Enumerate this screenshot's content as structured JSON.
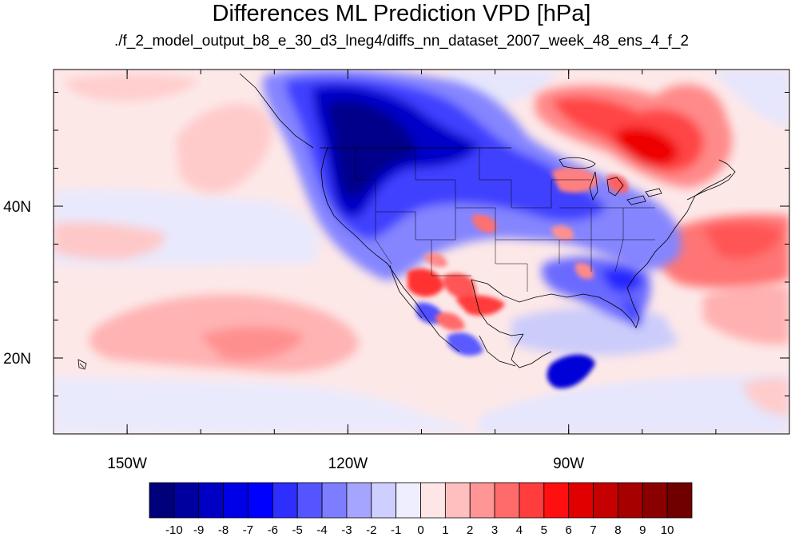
{
  "title": "Differences ML Prediction VPD [hPa]",
  "subtitle": "./f_2_model_output_b8_e_30_d3_lneg4/diffs_nn_dataset_2007_week_48_ens_4_f_2",
  "map": {
    "lon_range": [
      -160,
      -60
    ],
    "lat_range": [
      10,
      58
    ],
    "x_ticks": [
      {
        "lon": -150,
        "label": "150W"
      },
      {
        "lon": -120,
        "label": "120W"
      },
      {
        "lon": -90,
        "label": "90W"
      }
    ],
    "y_ticks": [
      {
        "lat": 40,
        "label": "40N"
      },
      {
        "lat": 20,
        "label": "20N"
      }
    ]
  },
  "colorbar": {
    "colors": [
      "#00007a",
      "#00009e",
      "#0000c4",
      "#0000e6",
      "#0000ff",
      "#2e2eff",
      "#5555ff",
      "#7d7dff",
      "#a5a5ff",
      "#cfcfff",
      "#eeeeff",
      "#ffe6e6",
      "#ffbfbf",
      "#ff9595",
      "#ff6b6b",
      "#ff3d3d",
      "#ff0f0f",
      "#e00000",
      "#c40000",
      "#a60000",
      "#8a0000",
      "#700000"
    ],
    "labels": [
      "-10",
      "-9",
      "-8",
      "-7",
      "-6",
      "-5",
      "-4",
      "-3",
      "-2",
      "-1",
      "0",
      "1",
      "2",
      "3",
      "4",
      "5",
      "6",
      "7",
      "8",
      "9",
      "10"
    ]
  }
}
